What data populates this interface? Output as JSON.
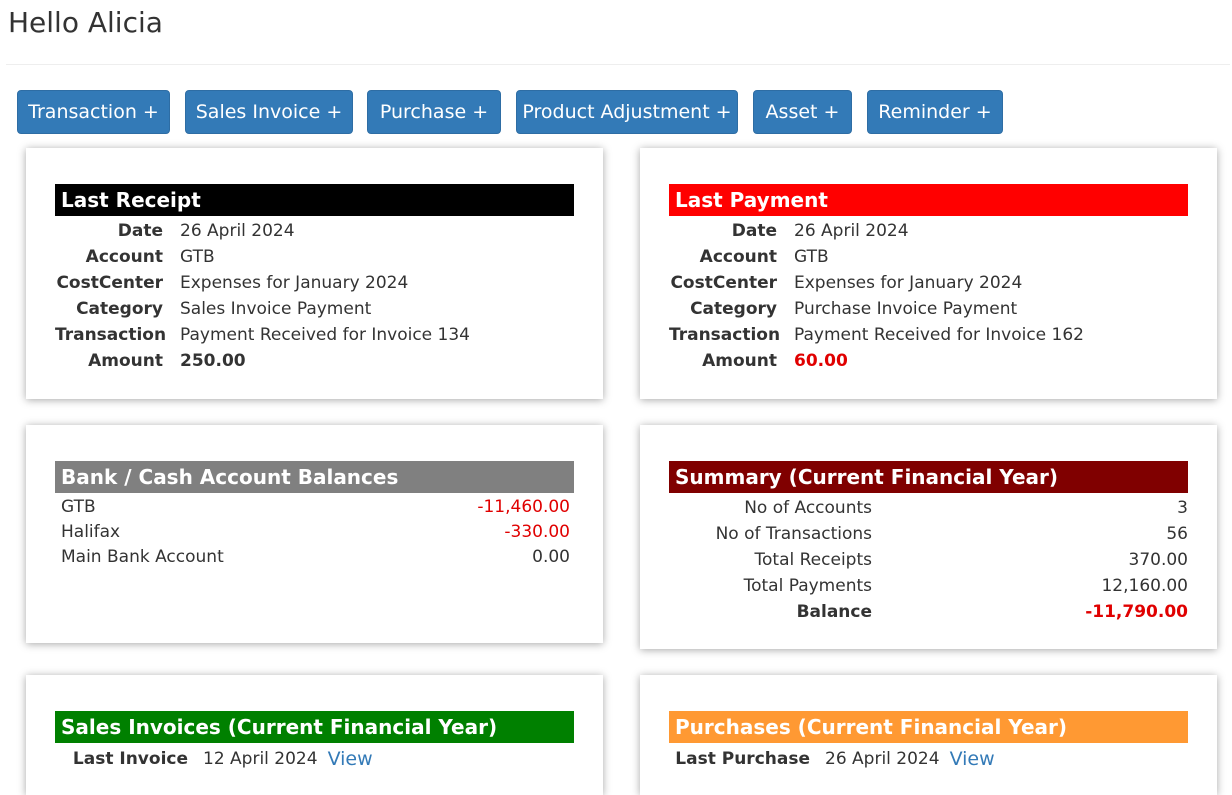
{
  "greeting": "Hello Alicia",
  "actions": [
    "Transaction +",
    "Sales Invoice +",
    "Purchase +",
    "Product Adjustment +",
    "Asset +",
    "Reminder +"
  ],
  "colors": {
    "primary_button": "#337ab7",
    "receipt_header": "#000000",
    "payment_header": "#ff0000",
    "balances_header": "#808080",
    "summary_header": "#800000",
    "sales_header": "#008000",
    "purchases_header": "#ff9933",
    "negative": "#e00000"
  },
  "last_receipt": {
    "title": "Last Receipt",
    "date_label": "Date",
    "date": "26 April 2024",
    "account_label": "Account",
    "account": "GTB",
    "costcenter_label": "CostCenter",
    "costcenter": "Expenses for January 2024",
    "category_label": "Category",
    "category": "Sales Invoice Payment",
    "transaction_label": "Transaction",
    "transaction": "Payment Received for Invoice 134",
    "amount_label": "Amount",
    "amount": "250.00"
  },
  "last_payment": {
    "title": "Last Payment",
    "date_label": "Date",
    "date": "26 April 2024",
    "account_label": "Account",
    "account": "GTB",
    "costcenter_label": "CostCenter",
    "costcenter": "Expenses for January 2024",
    "category_label": "Category",
    "category": "Purchase Invoice Payment",
    "transaction_label": "Transaction",
    "transaction": "Payment Received for Invoice 162",
    "amount_label": "Amount",
    "amount": "60.00"
  },
  "balances": {
    "title": "Bank / Cash Account Balances",
    "rows": [
      {
        "name": "GTB",
        "value": "-11,460.00"
      },
      {
        "name": "Halifax",
        "value": "-330.00"
      },
      {
        "name": "Main Bank Account",
        "value": "0.00"
      }
    ]
  },
  "summary": {
    "title": "Summary (Current Financial Year)",
    "rows": [
      {
        "label": "No of Accounts",
        "value": "3"
      },
      {
        "label": "No of Transactions",
        "value": "56"
      },
      {
        "label": "Total Receipts",
        "value": "370.00"
      },
      {
        "label": "Total Payments",
        "value": "12,160.00"
      },
      {
        "label": "Balance",
        "value": "-11,790.00"
      }
    ]
  },
  "sales": {
    "title": "Sales Invoices (Current Financial Year)",
    "last_label": "Last Invoice",
    "last_date": "12 April 2024",
    "view": "View"
  },
  "purchases": {
    "title": "Purchases (Current Financial Year)",
    "last_label": "Last Purchase",
    "last_date": "26 April 2024",
    "view": "View"
  }
}
